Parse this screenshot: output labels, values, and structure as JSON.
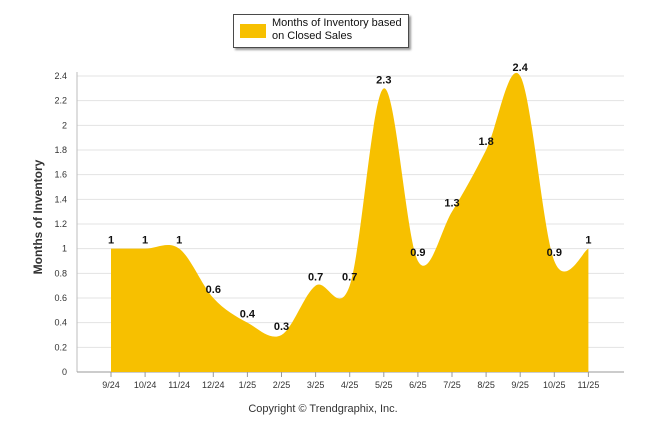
{
  "chart_data": {
    "type": "area",
    "series": [
      {
        "name": "Months of Inventory based on Closed Sales",
        "color": "#F7C000",
        "values": [
          1,
          1,
          1,
          0.6,
          0.4,
          0.3,
          0.7,
          0.7,
          2.3,
          0.9,
          1.3,
          1.8,
          2.4,
          0.9,
          1
        ]
      }
    ],
    "categories": [
      "9/24",
      "10/24",
      "11/24",
      "12/24",
      "1/25",
      "2/25",
      "3/25",
      "4/25",
      "5/25",
      "6/25",
      "7/25",
      "8/25",
      "9/25",
      "10/25",
      "11/25"
    ],
    "data_labels": [
      "1",
      "1",
      "1",
      "0.6",
      "0.4",
      "0.3",
      "0.7",
      "0.7",
      "2.3",
      "0.9",
      "1.3",
      "1.8",
      "2.4",
      "0.9",
      "1"
    ],
    "y_ticks": [
      "0",
      "0.2",
      "0.4",
      "0.6",
      "0.8",
      "1",
      "1.2",
      "1.4",
      "1.6",
      "1.8",
      "2",
      "2.2",
      "2.4"
    ],
    "ylim": [
      0,
      2.4
    ],
    "xlabel": "",
    "ylabel": "Months of Inventory",
    "legend_label": "Months of Inventory based\non Closed Sales",
    "legend_position": "top-center",
    "grid": true,
    "footer": "Copyright © Trendgraphix, Inc."
  }
}
